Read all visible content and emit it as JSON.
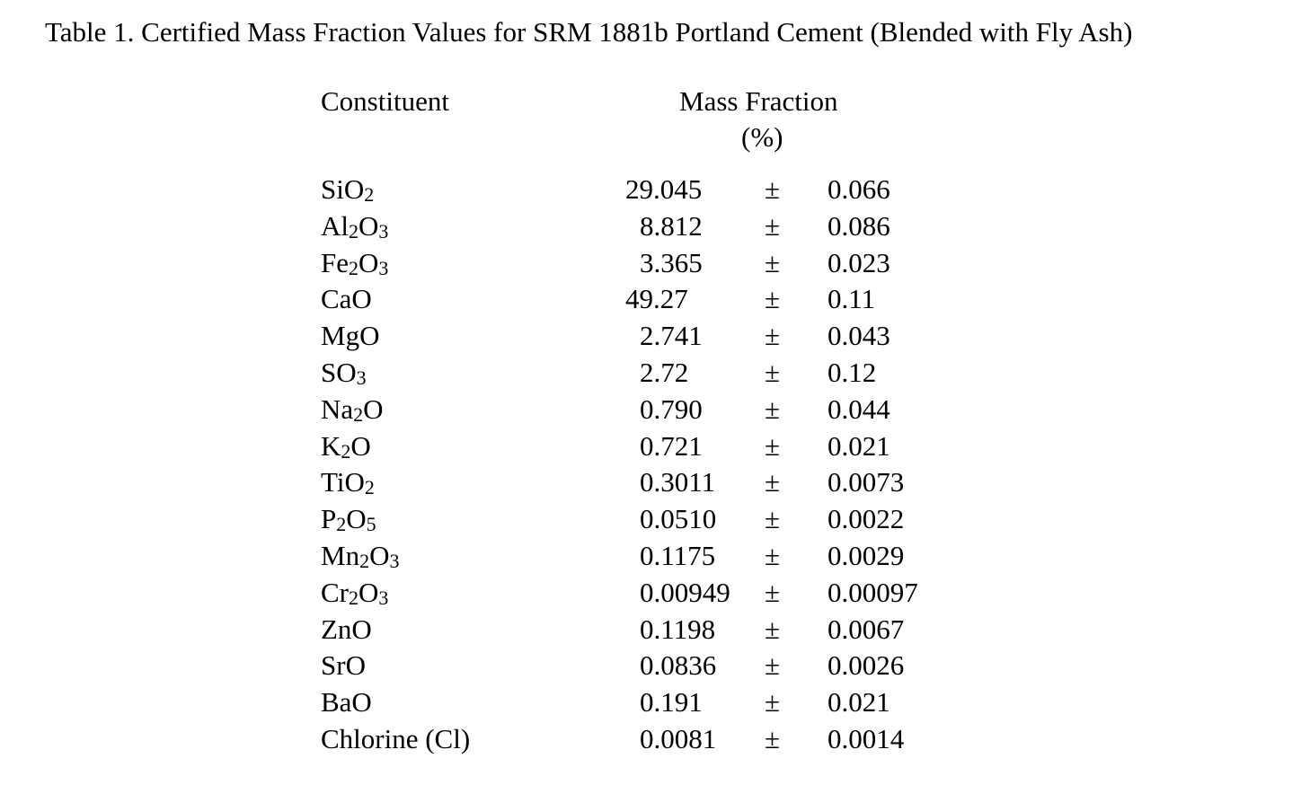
{
  "title": "Table 1.  Certified Mass Fraction Values for SRM 1881b Portland Cement (Blended with Fly Ash)",
  "header": {
    "constituent": "Constituent",
    "mass_fraction": "Mass Fraction",
    "unit": "(%)"
  },
  "pm_symbol": "±",
  "rows": [
    {
      "name": [
        {
          "t": "SiO"
        },
        {
          "t": "2",
          "sub": true
        }
      ],
      "value": "29.045",
      "uncertainty": "0.066"
    },
    {
      "name": [
        {
          "t": "Al"
        },
        {
          "t": "2",
          "sub": true
        },
        {
          "t": "O"
        },
        {
          "t": "3",
          "sub": true
        }
      ],
      "value": "8.812",
      "uncertainty": "0.086"
    },
    {
      "name": [
        {
          "t": "Fe"
        },
        {
          "t": "2",
          "sub": true
        },
        {
          "t": "O"
        },
        {
          "t": "3",
          "sub": true
        }
      ],
      "value": "3.365",
      "uncertainty": "0.023"
    },
    {
      "name": [
        {
          "t": "CaO"
        }
      ],
      "value": "49.27",
      "uncertainty": "0.11"
    },
    {
      "name": [
        {
          "t": "MgO"
        }
      ],
      "value": "2.741",
      "uncertainty": "0.043"
    },
    {
      "name": [
        {
          "t": "SO"
        },
        {
          "t": "3",
          "sub": true
        }
      ],
      "value": "2.72",
      "uncertainty": "0.12"
    },
    {
      "name": [
        {
          "t": "Na"
        },
        {
          "t": "2",
          "sub": true
        },
        {
          "t": "O"
        }
      ],
      "value": "0.790",
      "uncertainty": "0.044"
    },
    {
      "name": [
        {
          "t": "K"
        },
        {
          "t": "2",
          "sub": true
        },
        {
          "t": "O"
        }
      ],
      "value": "0.721",
      "uncertainty": "0.021"
    },
    {
      "name": [
        {
          "t": "TiO"
        },
        {
          "t": "2",
          "sub": true
        }
      ],
      "value": "0.3011",
      "uncertainty": "0.0073"
    },
    {
      "name": [
        {
          "t": "P"
        },
        {
          "t": "2",
          "sub": true
        },
        {
          "t": "O"
        },
        {
          "t": "5",
          "sub": true
        }
      ],
      "value": "0.0510",
      "uncertainty": "0.0022"
    },
    {
      "name": [
        {
          "t": "Mn"
        },
        {
          "t": "2",
          "sub": true
        },
        {
          "t": "O"
        },
        {
          "t": "3",
          "sub": true
        }
      ],
      "value": "0.1175",
      "uncertainty": "0.0029"
    },
    {
      "name": [
        {
          "t": "Cr"
        },
        {
          "t": "2",
          "sub": true
        },
        {
          "t": "O"
        },
        {
          "t": "3",
          "sub": true
        }
      ],
      "value": "0.00949",
      "uncertainty": "0.00097"
    },
    {
      "name": [
        {
          "t": "ZnO"
        }
      ],
      "value": "0.1198",
      "uncertainty": "0.0067"
    },
    {
      "name": [
        {
          "t": "SrO"
        }
      ],
      "value": "0.0836",
      "uncertainty": "0.0026"
    },
    {
      "name": [
        {
          "t": "BaO"
        }
      ],
      "value": "0.191",
      "uncertainty": "0.021"
    },
    {
      "name": [
        {
          "t": "Chlorine (Cl)"
        }
      ],
      "value": "0.0081",
      "uncertainty": "0.0014"
    }
  ]
}
